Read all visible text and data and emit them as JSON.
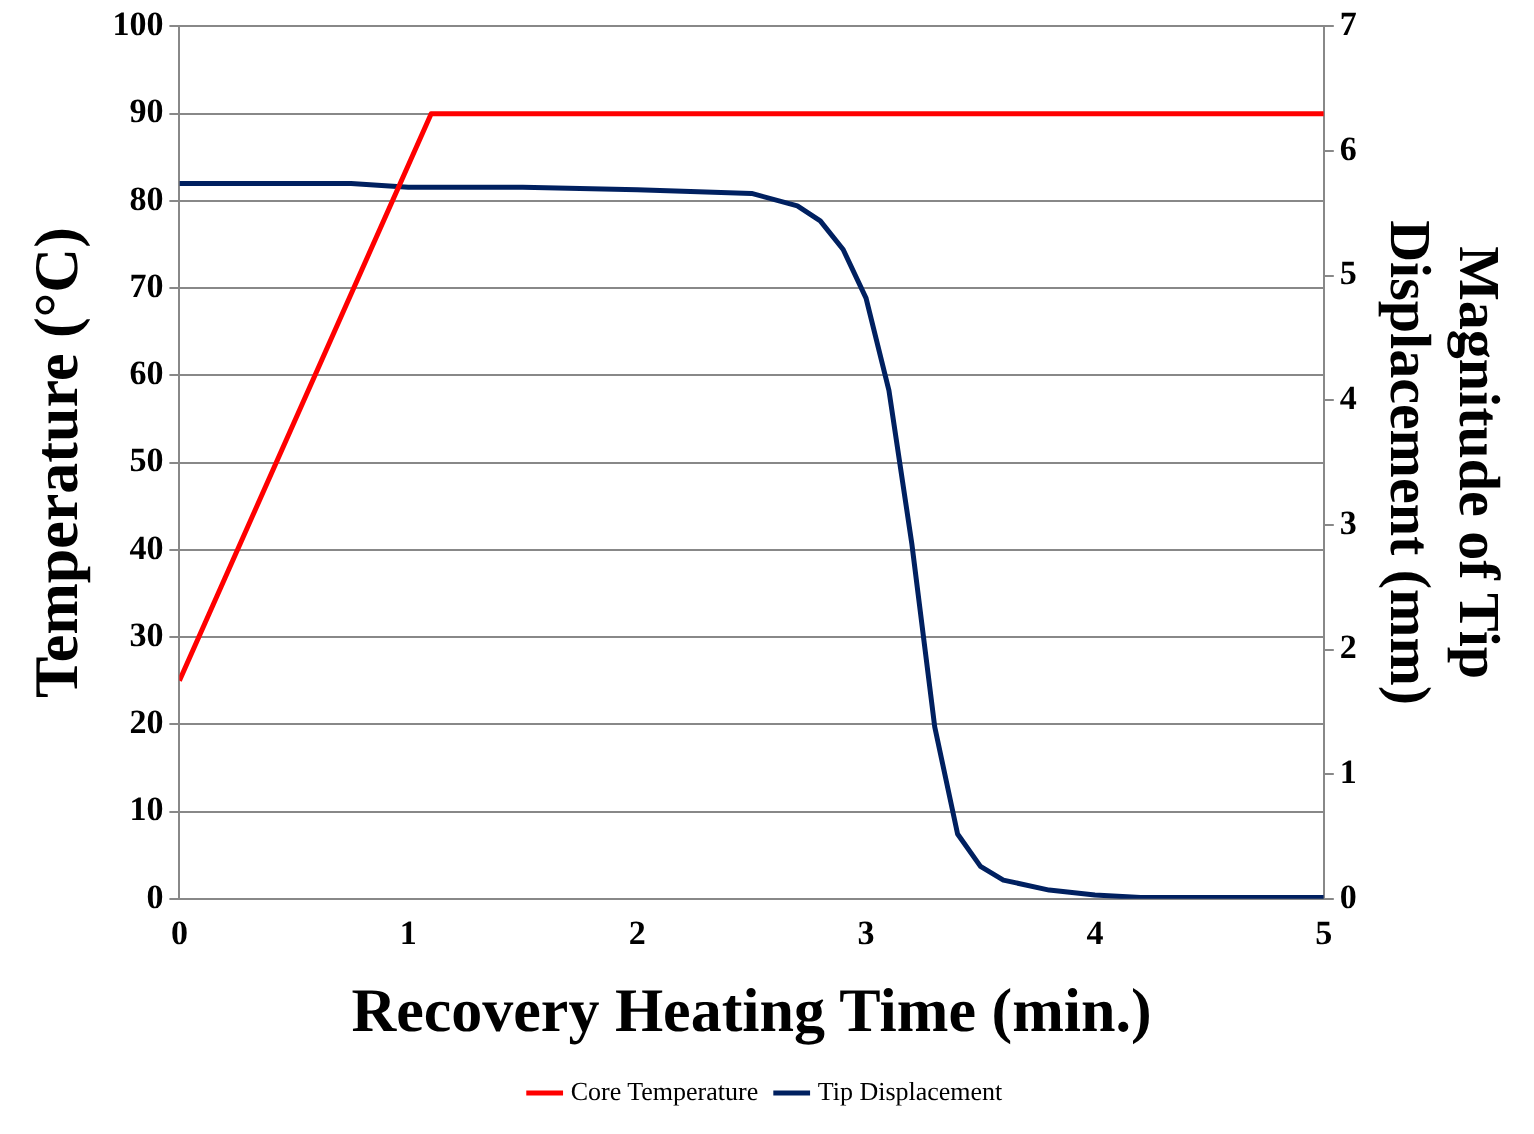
{
  "chart_data": {
    "type": "line",
    "xlabel": "Recovery Heating Time (min.)",
    "ylabel": "Temperature (°C)",
    "y2label": "Magnitude of Tip Displacement (mm)",
    "xlim": [
      0,
      5
    ],
    "xticks": [
      0,
      1,
      2,
      3,
      4,
      5
    ],
    "ylim": [
      0,
      100
    ],
    "yticks": [
      0,
      10,
      20,
      30,
      40,
      50,
      60,
      70,
      80,
      90,
      100
    ],
    "y2lim": [
      0,
      7
    ],
    "y2ticks": [
      0,
      1,
      2,
      3,
      4,
      5,
      6,
      7
    ],
    "grid": "y",
    "legend": "bottom",
    "marker": "none",
    "line_style": "solid",
    "series": [
      {
        "name": "Core Temperature",
        "color": "#ff0000",
        "x": [
          0,
          1.1,
          5
        ],
        "values": [
          25,
          90,
          90
        ]
      },
      {
        "name": "Tip Displacement",
        "color": "#002060",
        "axis": "y2",
        "x": [
          0,
          0.75,
          1,
          1.5,
          2,
          2.5,
          2.7,
          2.8,
          2.9,
          3.0,
          3.1,
          3.2,
          3.3,
          3.4,
          3.5,
          3.6,
          3.8,
          4.0,
          4.2,
          5
        ],
        "values": [
          5.74,
          5.74,
          5.71,
          5.71,
          5.69,
          5.66,
          5.56,
          5.44,
          5.21,
          4.82,
          4.08,
          2.85,
          1.38,
          0.52,
          0.26,
          0.15,
          0.07,
          0.03,
          0.01,
          0.01
        ]
      }
    ]
  }
}
